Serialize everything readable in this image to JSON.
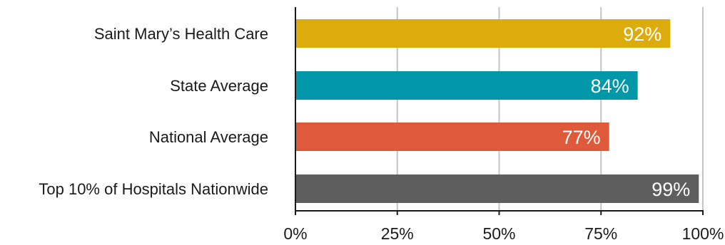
{
  "chart_data": {
    "type": "bar",
    "orientation": "horizontal",
    "categories": [
      "Saint Mary’s Health Care",
      "State Average",
      "National Average",
      "Top 10% of Hospitals Nationwide"
    ],
    "values": [
      92,
      84,
      77,
      99
    ],
    "value_labels": [
      "92%",
      "84%",
      "77%",
      "99%"
    ],
    "colors": [
      "#dcac0c",
      "#0097a9",
      "#de5a3a",
      "#5e5e5e"
    ],
    "xlim": [
      0,
      100
    ],
    "x_ticks": [
      0,
      25,
      50,
      75,
      100
    ],
    "x_tick_labels": [
      "0%",
      "25%",
      "50%",
      "75%",
      "100%"
    ],
    "grid": true,
    "legend": "none"
  }
}
